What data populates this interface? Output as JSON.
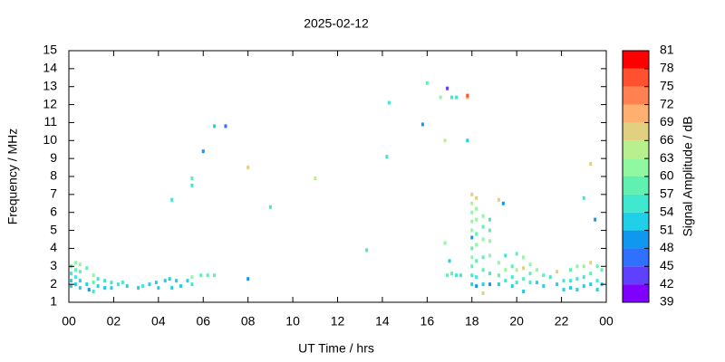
{
  "chart_data": {
    "type": "scatter",
    "title": "2025-02-12",
    "xlabel": "UT Time / hrs",
    "ylabel": "Frequency / MHz",
    "colorbar_label": "Signal Amplitude / dB",
    "xlim": [
      0,
      24
    ],
    "xticks": [
      {
        "value": 0,
        "label": "00"
      },
      {
        "value": 2,
        "label": "02"
      },
      {
        "value": 4,
        "label": "04"
      },
      {
        "value": 6,
        "label": "06"
      },
      {
        "value": 8,
        "label": "08"
      },
      10,
      12,
      14,
      16,
      18,
      20,
      22,
      {
        "value": 24,
        "label": "00"
      }
    ],
    "ylim": [
      1,
      15
    ],
    "yticks": [
      1,
      2,
      3,
      4,
      5,
      6,
      7,
      8,
      9,
      10,
      11,
      12,
      13,
      14,
      15
    ],
    "clim": [
      39,
      81
    ],
    "cticks": [
      39,
      42,
      45,
      48,
      51,
      54,
      57,
      60,
      63,
      66,
      69,
      72,
      75,
      78,
      81
    ],
    "colors": [
      "#8000ff",
      "#6040ff",
      "#3070ff",
      "#1098f0",
      "#20d0e8",
      "#40e8d0",
      "#60f0b0",
      "#90f8a0",
      "#b8f090",
      "#e0d080",
      "#ffb070",
      "#ff8050",
      "#ff5030",
      "#ff0000"
    ],
    "x": [
      0.1,
      0.1,
      0.1,
      0.1,
      0.3,
      0.3,
      0.3,
      0.3,
      0.5,
      0.5,
      0.5,
      0.5,
      0.8,
      0.8,
      0.9,
      1.1,
      1.1,
      1.1,
      1.3,
      1.3,
      1.6,
      1.6,
      1.9,
      1.9,
      2.2,
      2.4,
      2.6,
      3.1,
      3.3,
      3.6,
      3.9,
      4.0,
      4.3,
      4.5,
      4.6,
      4.8,
      5.0,
      5.3,
      5.5,
      5.5,
      5.9,
      6.2,
      6.5,
      4.6,
      5.5,
      5.5,
      6.0,
      6.5,
      7.0,
      8.0,
      8.0,
      9.0,
      11.0,
      13.3,
      14.2,
      14.3,
      15.8,
      16.0,
      16.6,
      16.8,
      16.8,
      16.9,
      17.0,
      17.1,
      17.3,
      17.8,
      17.8,
      17.8,
      16.9,
      17.1,
      17.3,
      17.5,
      18.0,
      18.0,
      18.0,
      18.0,
      18.0,
      18.0,
      18.0,
      18.0,
      18.0,
      18.0,
      18.0,
      18.2,
      18.2,
      18.2,
      18.2,
      18.2,
      18.2,
      18.2,
      18.2,
      18.5,
      18.5,
      18.5,
      18.5,
      18.5,
      18.5,
      18.5,
      18.8,
      18.8,
      18.8,
      18.8,
      18.8,
      18.8,
      19.2,
      19.2,
      19.2,
      19.2,
      19.4,
      19.5,
      19.5,
      19.5,
      19.8,
      19.8,
      19.8,
      20.0,
      20.0,
      20.0,
      20.3,
      20.3,
      20.3,
      20.3,
      20.6,
      20.6,
      20.6,
      20.9,
      20.9,
      21.2,
      21.2,
      21.5,
      21.8,
      21.8,
      22.1,
      22.1,
      22.4,
      22.4,
      22.4,
      22.7,
      22.7,
      22.7,
      23.0,
      23.0,
      23.0,
      23.3,
      23.3,
      23.3,
      23.6,
      23.6,
      23.6,
      23.8,
      23.8,
      23.0,
      23.3,
      23.5
    ],
    "y": [
      3.0,
      2.6,
      2.2,
      1.9,
      3.2,
      2.8,
      2.4,
      2.0,
      3.1,
      2.7,
      2.2,
      1.8,
      2.9,
      2.0,
      1.7,
      2.5,
      2.1,
      1.6,
      2.3,
      1.9,
      2.2,
      1.8,
      2.1,
      1.8,
      2.0,
      2.1,
      1.9,
      1.8,
      1.9,
      2.0,
      2.1,
      1.8,
      2.2,
      2.3,
      1.8,
      2.2,
      1.9,
      2.2,
      2.4,
      2.0,
      2.5,
      2.5,
      2.5,
      6.7,
      7.9,
      7.5,
      9.4,
      10.8,
      10.8,
      8.5,
      2.3,
      6.3,
      7.9,
      3.9,
      9.1,
      12.1,
      10.9,
      13.2,
      12.4,
      10.0,
      4.3,
      12.9,
      3.3,
      12.4,
      12.4,
      12.4,
      12.5,
      10.0,
      2.5,
      2.6,
      2.5,
      2.5,
      7.0,
      6.5,
      6.0,
      5.5,
      5.0,
      4.6,
      4.0,
      3.5,
      3.0,
      2.5,
      2.0,
      6.8,
      6.2,
      5.6,
      4.8,
      4.2,
      3.3,
      2.4,
      1.9,
      5.8,
      5.2,
      4.5,
      3.5,
      2.8,
      2.0,
      1.5,
      5.6,
      5.0,
      4.4,
      3.6,
      2.6,
      2.0,
      6.7,
      3.2,
      2.5,
      2.0,
      6.5,
      3.6,
      2.8,
      2.2,
      3.0,
      2.4,
      1.9,
      3.7,
      2.8,
      2.1,
      3.5,
      2.9,
      2.3,
      1.6,
      3.1,
      2.6,
      2.1,
      2.8,
      2.1,
      2.5,
      1.9,
      2.4,
      2.7,
      2.0,
      2.2,
      1.7,
      2.8,
      2.2,
      1.8,
      3.0,
      2.3,
      1.7,
      3.0,
      2.4,
      1.9,
      3.2,
      2.6,
      2.0,
      3.0,
      2.2,
      1.7,
      2.8,
      2.0,
      6.8,
      8.7,
      5.6
    ],
    "values": [
      58,
      55,
      53,
      52,
      60,
      57,
      54,
      52,
      61,
      58,
      53,
      51,
      58,
      52,
      50,
      60,
      58,
      56,
      55,
      53,
      54,
      52,
      56,
      53,
      55,
      54,
      53,
      52,
      54,
      52,
      53,
      51,
      52,
      53,
      51,
      52,
      51,
      53,
      60,
      54,
      57,
      57,
      58,
      56,
      57,
      56,
      50,
      51,
      45,
      67,
      50,
      56,
      64,
      56,
      56,
      55,
      48,
      58,
      60,
      64,
      60,
      42,
      52,
      56,
      55,
      71,
      77,
      53,
      57,
      58,
      55,
      56,
      68,
      64,
      62,
      60,
      60,
      50,
      57,
      60,
      58,
      56,
      52,
      66,
      62,
      60,
      58,
      60,
      57,
      56,
      50,
      60,
      58,
      60,
      58,
      57,
      53,
      66,
      55,
      58,
      62,
      60,
      56,
      50,
      68,
      60,
      57,
      52,
      50,
      56,
      60,
      55,
      58,
      55,
      52,
      58,
      65,
      54,
      61,
      66,
      57,
      52,
      60,
      58,
      54,
      60,
      52,
      58,
      52,
      56,
      66,
      53,
      55,
      51,
      58,
      54,
      52,
      62,
      56,
      51,
      60,
      55,
      52,
      66,
      57,
      53,
      58,
      54,
      51,
      57,
      53,
      54,
      67,
      50
    ]
  }
}
